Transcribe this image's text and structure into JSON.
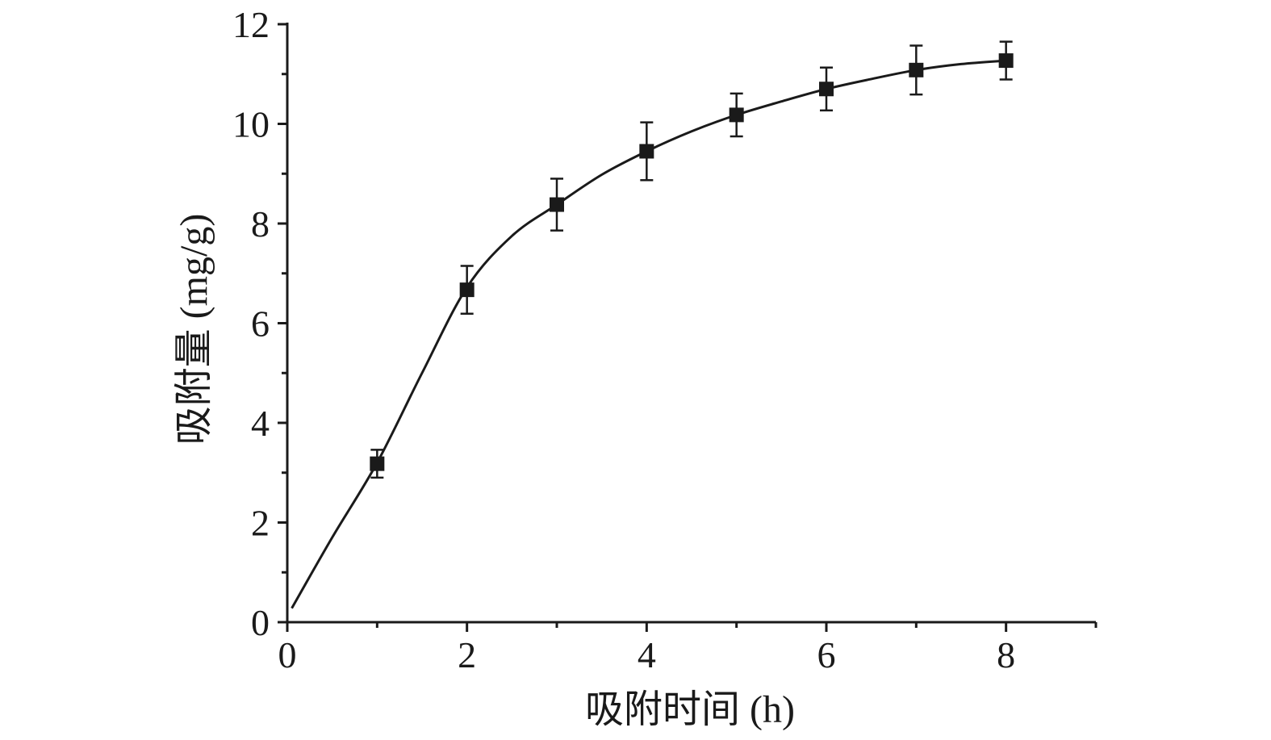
{
  "chart_data": {
    "type": "scatter",
    "title": "",
    "xlabel": "吸附时间 (h)",
    "ylabel": "吸附量 (mg/g)",
    "xlim": [
      0,
      9
    ],
    "ylim": [
      0,
      12
    ],
    "x_ticks": [
      0,
      2,
      4,
      6,
      8
    ],
    "x_minor_ticks": [
      1,
      3,
      5,
      7,
      9
    ],
    "y_ticks": [
      0,
      2,
      4,
      6,
      8,
      10,
      12
    ],
    "y_minor_ticks": [
      1,
      3,
      5,
      7,
      9,
      11
    ],
    "grid": false,
    "legend": "none",
    "marker": "square",
    "color": "#1a1a1a",
    "points": [
      {
        "x": 1,
        "y": 3.18,
        "err": 0.28
      },
      {
        "x": 2,
        "y": 6.67,
        "err": 0.48
      },
      {
        "x": 3,
        "y": 8.38,
        "err": 0.52
      },
      {
        "x": 4,
        "y": 9.45,
        "err": 0.58
      },
      {
        "x": 5,
        "y": 10.18,
        "err": 0.43
      },
      {
        "x": 6,
        "y": 10.7,
        "err": 0.43
      },
      {
        "x": 7,
        "y": 11.08,
        "err": 0.49
      },
      {
        "x": 8,
        "y": 11.27,
        "err": 0.38
      }
    ],
    "fit_curve": {
      "x": [
        0.05,
        0.5,
        1,
        1.5,
        2,
        2.5,
        3,
        3.5,
        4,
        4.5,
        5,
        5.5,
        6,
        6.5,
        7,
        7.5,
        8
      ],
      "y": [
        0.28,
        1.7,
        3.2,
        5.0,
        6.72,
        7.75,
        8.38,
        8.98,
        9.45,
        9.85,
        10.18,
        10.45,
        10.7,
        10.9,
        11.08,
        11.2,
        11.27
      ]
    }
  }
}
